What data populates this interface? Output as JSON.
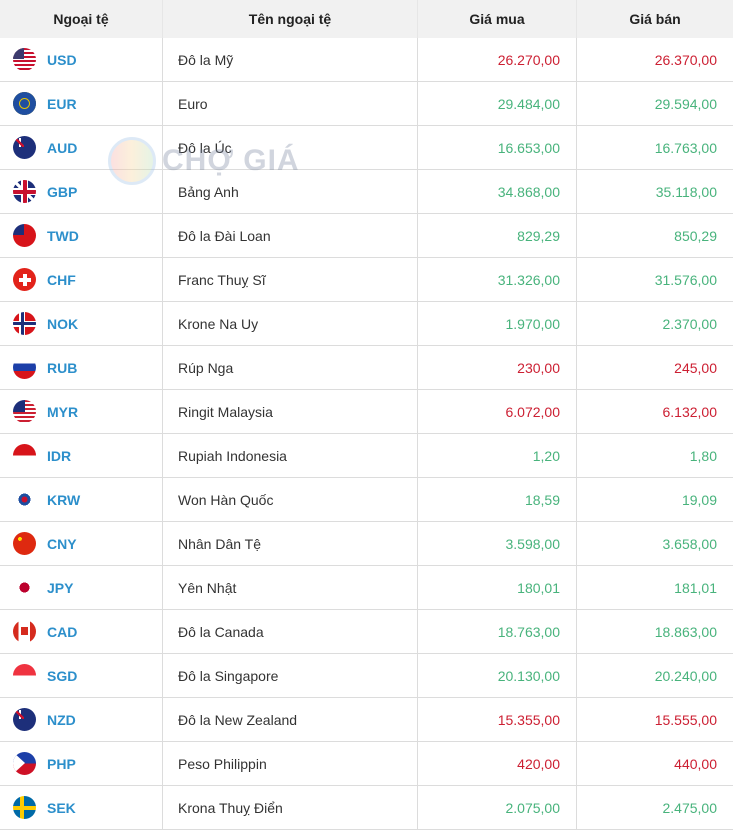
{
  "headers": {
    "code": "Ngoại tệ",
    "name": "Tên ngoại tệ",
    "buy": "Giá mua",
    "sell": "Giá bán"
  },
  "colors": {
    "code": "#2c8fcb",
    "up": "#48b37c",
    "down": "#cc1f32",
    "header_bg": "#f1f1f1"
  },
  "watermark": "CHỢ GIÁ",
  "rows": [
    {
      "code": "USD",
      "flag": "us-flag-icon",
      "name": "Đô la Mỹ",
      "buy": "26.270,00",
      "sell": "26.370,00",
      "trend": "down"
    },
    {
      "code": "EUR",
      "flag": "eu-flag-icon",
      "name": "Euro",
      "buy": "29.484,00",
      "sell": "29.594,00",
      "trend": "up"
    },
    {
      "code": "AUD",
      "flag": "au-flag-icon",
      "name": "Đô la Úc",
      "buy": "16.653,00",
      "sell": "16.763,00",
      "trend": "up"
    },
    {
      "code": "GBP",
      "flag": "gb-flag-icon",
      "name": "Bảng Anh",
      "buy": "34.868,00",
      "sell": "35.118,00",
      "trend": "up"
    },
    {
      "code": "TWD",
      "flag": "tw-flag-icon",
      "name": "Đô la Đài Loan",
      "buy": "829,29",
      "sell": "850,29",
      "trend": "up"
    },
    {
      "code": "CHF",
      "flag": "ch-flag-icon",
      "name": "Franc Thuỵ Sĩ",
      "buy": "31.326,00",
      "sell": "31.576,00",
      "trend": "up"
    },
    {
      "code": "NOK",
      "flag": "no-flag-icon",
      "name": "Krone Na Uy",
      "buy": "1.970,00",
      "sell": "2.370,00",
      "trend": "up"
    },
    {
      "code": "RUB",
      "flag": "ru-flag-icon",
      "name": "Rúp Nga",
      "buy": "230,00",
      "sell": "245,00",
      "trend": "down"
    },
    {
      "code": "MYR",
      "flag": "my-flag-icon",
      "name": "Ringit Malaysia",
      "buy": "6.072,00",
      "sell": "6.132,00",
      "trend": "down"
    },
    {
      "code": "IDR",
      "flag": "id-flag-icon",
      "name": "Rupiah Indonesia",
      "buy": "1,20",
      "sell": "1,80",
      "trend": "up"
    },
    {
      "code": "KRW",
      "flag": "kr-flag-icon",
      "name": "Won Hàn Quốc",
      "buy": "18,59",
      "sell": "19,09",
      "trend": "up"
    },
    {
      "code": "CNY",
      "flag": "cn-flag-icon",
      "name": "Nhân Dân Tệ",
      "buy": "3.598,00",
      "sell": "3.658,00",
      "trend": "up"
    },
    {
      "code": "JPY",
      "flag": "jp-flag-icon",
      "name": "Yên Nhật",
      "buy": "180,01",
      "sell": "181,01",
      "trend": "up"
    },
    {
      "code": "CAD",
      "flag": "ca-flag-icon",
      "name": "Đô la Canada",
      "buy": "18.763,00",
      "sell": "18.863,00",
      "trend": "up"
    },
    {
      "code": "SGD",
      "flag": "sg-flag-icon",
      "name": "Đô la Singapore",
      "buy": "20.130,00",
      "sell": "20.240,00",
      "trend": "up"
    },
    {
      "code": "NZD",
      "flag": "nz-flag-icon",
      "name": "Đô la New Zealand",
      "buy": "15.355,00",
      "sell": "15.555,00",
      "trend": "down"
    },
    {
      "code": "PHP",
      "flag": "ph-flag-icon",
      "name": "Peso Philippin",
      "buy": "420,00",
      "sell": "440,00",
      "trend": "down"
    },
    {
      "code": "SEK",
      "flag": "se-flag-icon",
      "name": "Krona Thuỵ Điển",
      "buy": "2.075,00",
      "sell": "2.475,00",
      "trend": "up"
    }
  ]
}
